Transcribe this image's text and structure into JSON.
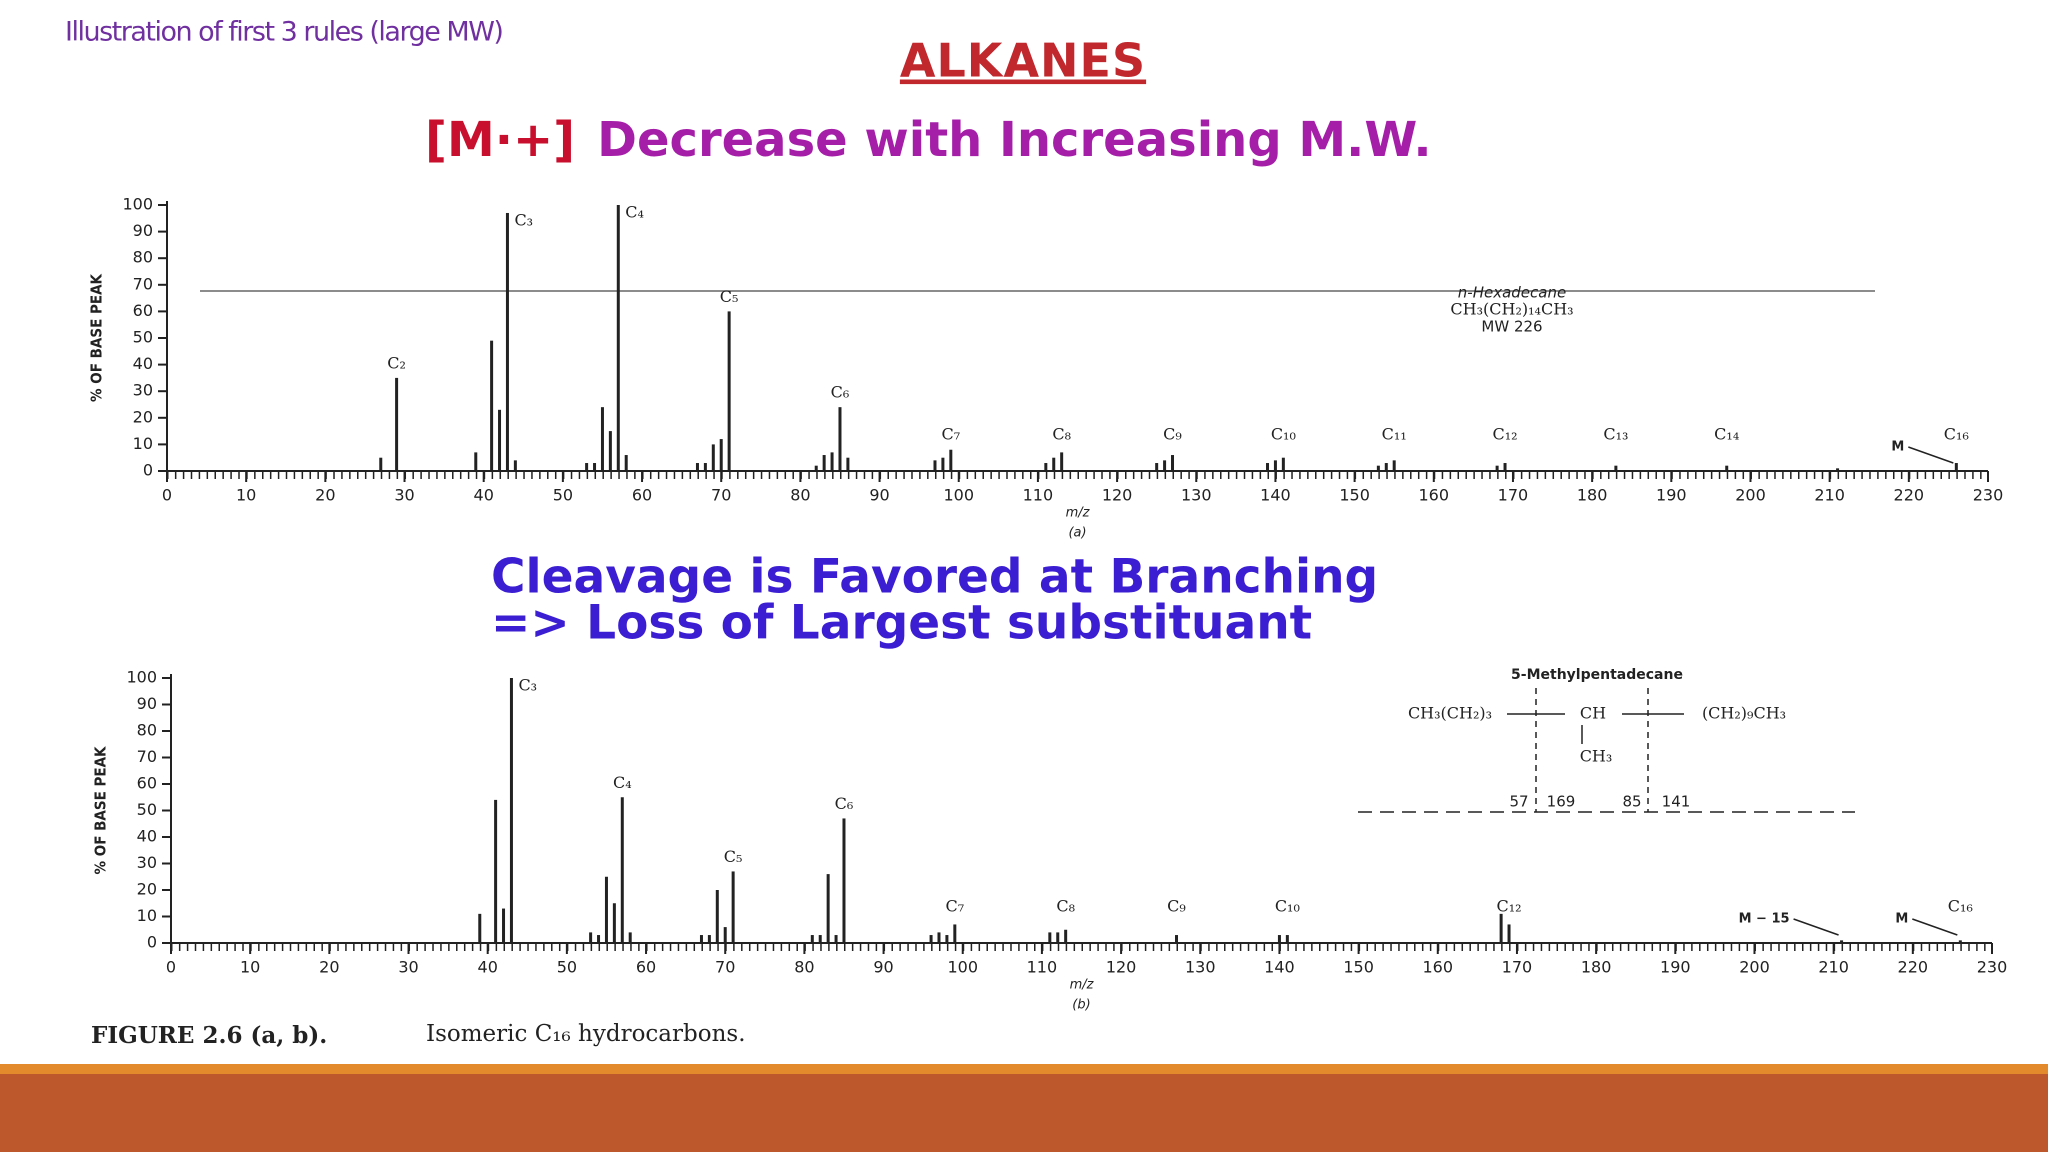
{
  "slide": {
    "header": "Illustration of first 3 rules (large MW)",
    "title": "ALKANES",
    "subtitle_ion": "[M·+]",
    "subtitle_rest": "Decrease with Increasing M.W.",
    "branch_line1": "Cleavage is Favored at Branching",
    "branch_line2": "=> Loss of Largest substituant",
    "caption": "FIGURE 2.6 (a, b).",
    "caption_text": "Isomeric C₁₆ hydrocarbons."
  },
  "chart_data": [
    {
      "type": "stick",
      "ylabel": "% OF BASE PEAK",
      "xlabel": "m/z",
      "sublabel": "(a)",
      "color": "#222222",
      "xlim": [
        0,
        230
      ],
      "xticks": [
        0,
        10,
        20,
        30,
        40,
        50,
        60,
        70,
        80,
        90,
        100,
        110,
        120,
        130,
        140,
        150,
        160,
        170,
        180,
        190,
        200,
        210,
        220,
        230
      ],
      "ylim": [
        0,
        100
      ],
      "yticks": [
        0,
        10,
        20,
        30,
        40,
        50,
        60,
        70,
        80,
        90,
        100
      ],
      "x": [
        27,
        29,
        39,
        41,
        42,
        43,
        44,
        53,
        54,
        55,
        56,
        57,
        58,
        67,
        68,
        69,
        70,
        71,
        82,
        83,
        84,
        85,
        86,
        97,
        98,
        99,
        111,
        112,
        113,
        125,
        126,
        127,
        139,
        140,
        141,
        153,
        154,
        155,
        168,
        169,
        183,
        197,
        211,
        226
      ],
      "values": [
        5,
        35,
        7,
        49,
        23,
        97,
        4,
        3,
        3,
        24,
        15,
        100,
        6,
        3,
        3,
        10,
        12,
        60,
        2,
        6,
        7,
        24,
        5,
        4,
        5,
        8,
        3,
        5,
        7,
        3,
        4,
        6,
        3,
        4,
        5,
        2,
        3,
        4,
        2,
        3,
        2,
        2,
        1,
        3
      ],
      "peak_labels": [
        {
          "text": "C₂",
          "mz": 29
        },
        {
          "text": "C₃",
          "mz": 43
        },
        {
          "text": "C₄",
          "mz": 57
        },
        {
          "text": "C₅",
          "mz": 71
        },
        {
          "text": "C₆",
          "mz": 85
        },
        {
          "text": "C₇",
          "mz": 99
        },
        {
          "text": "C₈",
          "mz": 113
        },
        {
          "text": "C₉",
          "mz": 127
        },
        {
          "text": "C₁₀",
          "mz": 141
        },
        {
          "text": "C₁₁",
          "mz": 155
        },
        {
          "text": "C₁₂",
          "mz": 169
        },
        {
          "text": "C₁₃",
          "mz": 183
        },
        {
          "text": "C₁₄",
          "mz": 197
        },
        {
          "text": "C₁₆",
          "mz": 226
        }
      ],
      "arrow_labels": [
        {
          "text": "M",
          "mz": 226
        }
      ],
      "inset": {
        "name": "n-Hexadecane",
        "formula": "CH₃(CH₂)₁₄CH₃",
        "mw": "MW 226"
      }
    },
    {
      "type": "stick",
      "ylabel": "% OF BASE PEAK",
      "xlabel": "m/z",
      "sublabel": "(b)",
      "color": "#222222",
      "xlim": [
        0,
        230
      ],
      "xticks": [
        0,
        10,
        20,
        30,
        40,
        50,
        60,
        70,
        80,
        90,
        100,
        110,
        120,
        130,
        140,
        150,
        160,
        170,
        180,
        190,
        200,
        210,
        220,
        230
      ],
      "ylim": [
        0,
        100
      ],
      "yticks": [
        0,
        10,
        20,
        30,
        40,
        50,
        60,
        70,
        80,
        90,
        100
      ],
      "x": [
        39,
        41,
        42,
        43,
        53,
        54,
        55,
        56,
        57,
        58,
        67,
        68,
        69,
        70,
        71,
        81,
        82,
        83,
        84,
        85,
        96,
        97,
        98,
        99,
        111,
        112,
        113,
        127,
        140,
        141,
        168,
        169,
        211,
        226
      ],
      "values": [
        11,
        54,
        13,
        100,
        4,
        3,
        25,
        15,
        55,
        4,
        3,
        3,
        20,
        6,
        27,
        3,
        3,
        26,
        3,
        47,
        3,
        4,
        3,
        7,
        4,
        4,
        5,
        3,
        3,
        3,
        11,
        7,
        1,
        1
      ],
      "peak_labels": [
        {
          "text": "C₃",
          "mz": 43
        },
        {
          "text": "C₄",
          "mz": 57
        },
        {
          "text": "C₅",
          "mz": 71
        },
        {
          "text": "C₆",
          "mz": 85
        },
        {
          "text": "C₇",
          "mz": 99
        },
        {
          "text": "C₈",
          "mz": 113
        },
        {
          "text": "C₉",
          "mz": 127
        },
        {
          "text": "C₁₀",
          "mz": 141
        },
        {
          "text": "C₁₂",
          "mz": 169
        },
        {
          "text": "C₁₆",
          "mz": 226
        }
      ],
      "arrow_labels": [
        {
          "text": "M − 15",
          "mz": 211
        },
        {
          "text": "M",
          "mz": 226
        }
      ],
      "inset": {
        "name": "5-Methylpentadecane",
        "left": "CH₃(CH₂)₃",
        "center": "CH",
        "right": "(CH₂)₉CH₃",
        "branch": "CH₃",
        "n1": "57",
        "n2": "169",
        "n3": "85",
        "n4": "141"
      }
    }
  ]
}
